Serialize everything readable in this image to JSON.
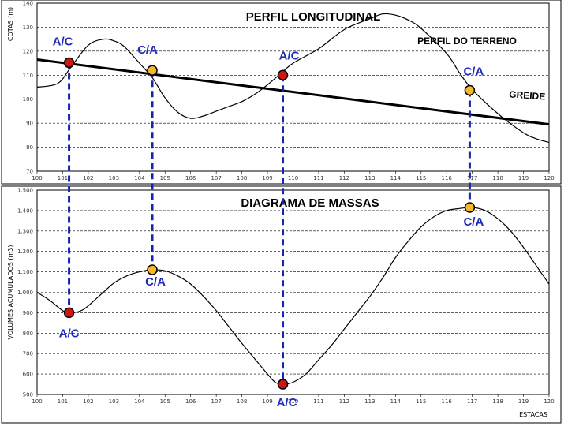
{
  "chart_data": [
    {
      "type": "line",
      "title": "PERFIL LONGITUDINAL",
      "ylabel": "COTAS (m)",
      "xlim": [
        100,
        120
      ],
      "ylim": [
        70,
        140
      ],
      "yticks": [
        "70",
        "80",
        "90",
        "100",
        "110",
        "120",
        "130",
        "140"
      ],
      "xticks": [
        "100",
        "101",
        "102",
        "103",
        "104",
        "105",
        "106",
        "107",
        "108",
        "109",
        "110",
        "111",
        "112",
        "113",
        "114",
        "115",
        "116",
        "117",
        "118",
        "119",
        "120"
      ],
      "series": [
        {
          "name": "PERFIL DO TERRENO",
          "x": [
            100,
            100.8,
            101.3,
            102,
            102.6,
            103,
            103.4,
            104,
            104.5,
            105,
            105.5,
            106,
            106.5,
            107,
            107.5,
            108,
            108.5,
            109,
            109.5,
            110,
            111,
            112,
            113,
            113.5,
            114,
            114.5,
            115,
            116,
            116.5,
            117,
            118,
            119,
            119.5,
            120
          ],
          "y": [
            105,
            106.5,
            113,
            122.5,
            125,
            124.3,
            122,
            115,
            109,
            100.5,
            94.5,
            92,
            93,
            95,
            97,
            99,
            102,
            106,
            110.5,
            115,
            121,
            129,
            133.5,
            135.5,
            135,
            133,
            129.5,
            119,
            111,
            104,
            94,
            86,
            83.5,
            82
          ]
        },
        {
          "name": "GREIDE",
          "x": [
            100,
            120
          ],
          "y": [
            116.5,
            89.5
          ]
        }
      ],
      "annotations": [
        {
          "text": "PERFIL DO TERRENO"
        },
        {
          "text": "GREIDE"
        }
      ],
      "points": [
        {
          "x": 101.25,
          "y": 115.2,
          "label": "A/C",
          "type": "A/C"
        },
        {
          "x": 104.5,
          "y": 112,
          "label": "C/A",
          "type": "C/A"
        },
        {
          "x": 109.6,
          "y": 110,
          "label": "A/C",
          "type": "A/C"
        },
        {
          "x": 116.9,
          "y": 103.7,
          "label": "C/A",
          "type": "C/A"
        }
      ]
    },
    {
      "type": "line",
      "title": "DIAGRAMA DE MASSAS",
      "ylabel": "VOLUMES ACUMULADOS (m3)",
      "xlabel": "ESTACAS",
      "xlim": [
        100,
        120
      ],
      "ylim": [
        500,
        1500
      ],
      "yticks": [
        "500",
        "600",
        "700",
        "800",
        "900",
        "1.000",
        "1.100",
        "1.200",
        "1.300",
        "1.400",
        "1.500"
      ],
      "xticks": [
        "100",
        "101",
        "102",
        "103",
        "104",
        "105",
        "106",
        "107",
        "108",
        "109",
        "110",
        "111",
        "112",
        "113",
        "114",
        "115",
        "116",
        "117",
        "118",
        "119",
        "120"
      ],
      "series": [
        {
          "name": "",
          "x": [
            100,
            100.5,
            101,
            101.3,
            101.8,
            102.5,
            103,
            103.5,
            104,
            104.5,
            105,
            105.5,
            106,
            106.5,
            107,
            107.5,
            108,
            108.5,
            109,
            109.3,
            109.6,
            110,
            110.5,
            111,
            111.5,
            112,
            112.5,
            113,
            113.5,
            114,
            114.5,
            115,
            115.5,
            116,
            116.5,
            117,
            117.5,
            118,
            118.5,
            119,
            119.5,
            120
          ],
          "y": [
            1000,
            960,
            910,
            900,
            915,
            990,
            1045,
            1080,
            1100,
            1110,
            1105,
            1080,
            1040,
            980,
            910,
            830,
            750,
            675,
            600,
            560,
            550,
            560,
            600,
            670,
            740,
            820,
            900,
            980,
            1070,
            1170,
            1250,
            1320,
            1370,
            1400,
            1410,
            1415,
            1400,
            1360,
            1300,
            1220,
            1130,
            1040
          ]
        }
      ],
      "points": [
        {
          "x": 101.25,
          "y": 900,
          "label": "A/C",
          "type": "A/C"
        },
        {
          "x": 104.5,
          "y": 1110,
          "label": "C/A",
          "type": "C/A"
        },
        {
          "x": 109.6,
          "y": 550,
          "label": "A/C",
          "type": "A/C"
        },
        {
          "x": 116.9,
          "y": 1415,
          "label": "C/A",
          "type": "C/A"
        }
      ]
    }
  ],
  "colors": {
    "ac_fill": "#d11515",
    "ca_fill": "#f5b82a",
    "label": "#1f2bb8",
    "guide": "#1a23b0",
    "grid": "#000000",
    "curve": "#000000"
  }
}
